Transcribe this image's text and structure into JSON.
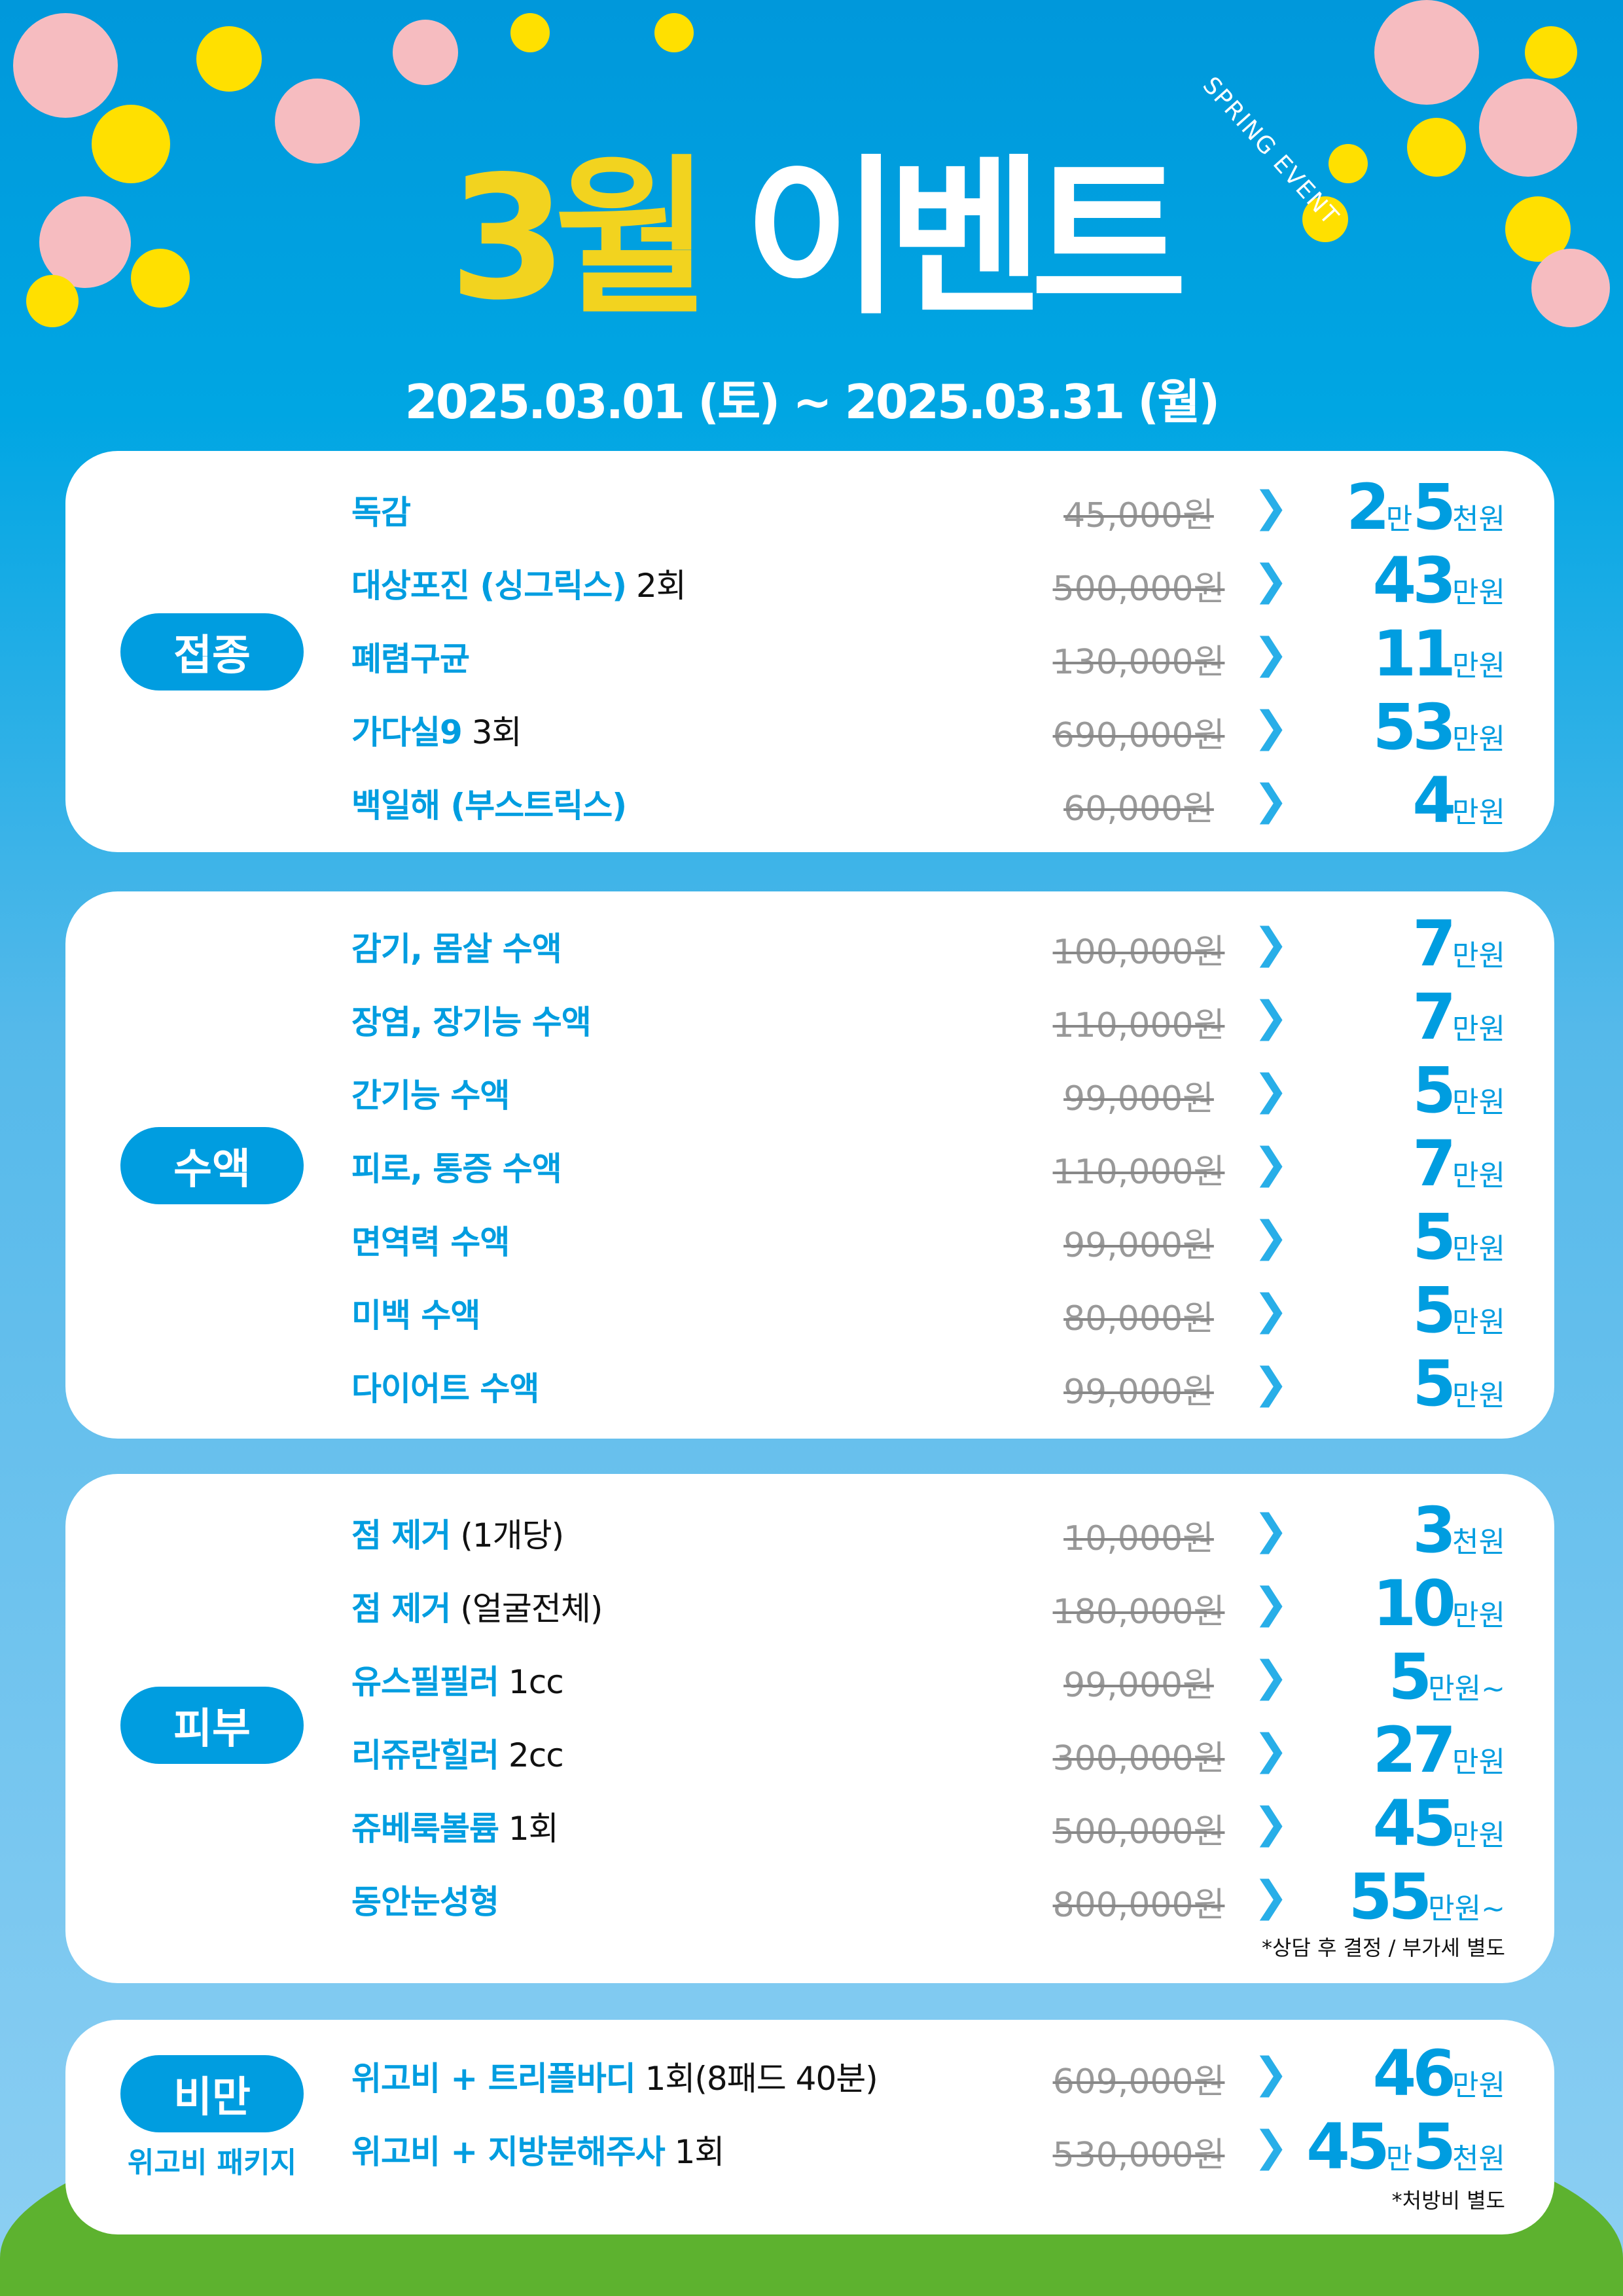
{
  "header": {
    "spring_label": "SPRING EVENT",
    "title_number": "3월",
    "title_word": "이벤트",
    "date_range": "2025.03.01 (토) ~ 2025.03.31 (월)"
  },
  "colors": {
    "accent": "#009de0",
    "title_yellow": "#f2d31f",
    "grass": "#5db22f"
  },
  "sections": [
    {
      "badge": "접종",
      "subtitle": "",
      "note": "",
      "items": [
        {
          "name_blue": "독감",
          "name_black": "",
          "original": "45,000원",
          "price": [
            [
              "2",
              "만"
            ],
            [
              "5",
              "천원"
            ]
          ]
        },
        {
          "name_blue": "대상포진 (싱그릭스)",
          "name_black": " 2회",
          "original": "500,000원",
          "price": [
            [
              "43",
              "만원"
            ]
          ]
        },
        {
          "name_blue": "폐렴구균",
          "name_black": "",
          "original": "130,000원",
          "price": [
            [
              "11",
              "만원"
            ]
          ]
        },
        {
          "name_blue": "가다실9",
          "name_black": " 3회",
          "original": "690,000원",
          "price": [
            [
              "53",
              "만원"
            ]
          ]
        },
        {
          "name_blue": "백일해 (부스트릭스)",
          "name_black": "",
          "original": "60,000원",
          "price": [
            [
              "4",
              "만원"
            ]
          ]
        }
      ]
    },
    {
      "badge": "수액",
      "subtitle": "",
      "note": "",
      "items": [
        {
          "name_blue": "감기, 몸살 수액",
          "name_black": "",
          "original": "100,000원",
          "price": [
            [
              "7",
              "만원"
            ]
          ]
        },
        {
          "name_blue": "장염, 장기능 수액",
          "name_black": "",
          "original": "110,000원",
          "price": [
            [
              "7",
              "만원"
            ]
          ]
        },
        {
          "name_blue": "간기능 수액",
          "name_black": "",
          "original": "99,000원",
          "price": [
            [
              "5",
              "만원"
            ]
          ]
        },
        {
          "name_blue": "피로, 통증 수액",
          "name_black": "",
          "original": "110,000원",
          "price": [
            [
              "7",
              "만원"
            ]
          ]
        },
        {
          "name_blue": "면역력 수액",
          "name_black": "",
          "original": "99,000원",
          "price": [
            [
              "5",
              "만원"
            ]
          ]
        },
        {
          "name_blue": "미백 수액",
          "name_black": "",
          "original": "80,000원",
          "price": [
            [
              "5",
              "만원"
            ]
          ]
        },
        {
          "name_blue": "다이어트 수액",
          "name_black": "",
          "original": "99,000원",
          "price": [
            [
              "5",
              "만원"
            ]
          ]
        }
      ]
    },
    {
      "badge": "피부",
      "subtitle": "",
      "note": "*상담 후 결정 / 부가세 별도",
      "items": [
        {
          "name_blue": "점 제거",
          "name_black": " (1개당)",
          "original": "10,000원",
          "price": [
            [
              "3",
              "천원"
            ]
          ]
        },
        {
          "name_blue": "점 제거",
          "name_black": " (얼굴전체)",
          "original": "180,000원",
          "price": [
            [
              "10",
              "만원"
            ]
          ]
        },
        {
          "name_blue": "유스필필러",
          "name_black": " 1cc",
          "original": "99,000원",
          "price": [
            [
              "5",
              "만원~"
            ]
          ]
        },
        {
          "name_blue": "리쥬란힐러",
          "name_black": " 2cc",
          "original": "300,000원",
          "price": [
            [
              "27",
              "만원"
            ]
          ]
        },
        {
          "name_blue": "쥬베룩볼륨",
          "name_black": " 1회",
          "original": "500,000원",
          "price": [
            [
              "45",
              "만원"
            ]
          ]
        },
        {
          "name_blue": "동안눈성형",
          "name_black": "",
          "original": "800,000원",
          "price": [
            [
              "55",
              "만원~"
            ]
          ]
        }
      ]
    },
    {
      "badge": "비만",
      "subtitle": "위고비 패키지",
      "note": "*처방비 별도",
      "items": [
        {
          "name_blue": "위고비 + 트리플바디",
          "name_black": " 1회(8패드 40분)",
          "original": "609,000원",
          "price": [
            [
              "46",
              "만원"
            ]
          ]
        },
        {
          "name_blue": "위고비 + 지방분해주사",
          "name_black": " 1회",
          "original": "530,000원",
          "price": [
            [
              "45",
              "만"
            ],
            [
              "5",
              "천원"
            ]
          ]
        }
      ]
    }
  ]
}
